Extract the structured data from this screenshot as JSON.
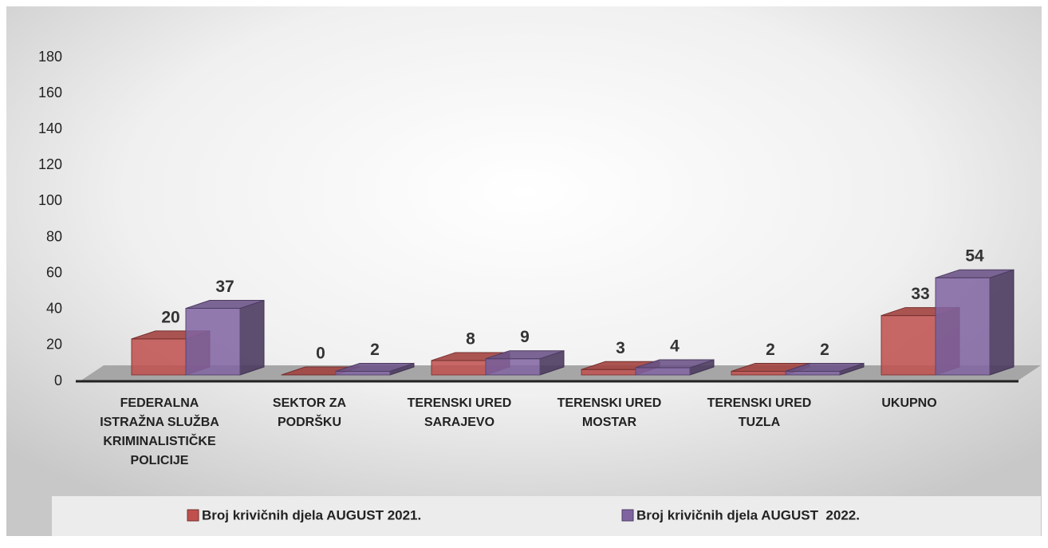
{
  "chart_data": {
    "type": "bar3d",
    "categories": [
      "FEDERALNA ISTRAŽNA SLUŽBA KRIMINALISTIČKE POLICIJE",
      "SEKTOR ZA PODRŠKU",
      "TERENSKI URED SARAJEVO",
      "TERENSKI URED MOSTAR",
      "TERENSKI URED TUZLA",
      "UKUPNO"
    ],
    "series": [
      {
        "name": "Broj krivičnih djela AUGUST 2021.",
        "color": "#c0504d",
        "values": [
          20,
          0,
          8,
          3,
          2,
          33
        ]
      },
      {
        "name": "Broj krivičnih djela AUGUST  2022.",
        "color": "#8064a2",
        "values": [
          37,
          2,
          9,
          4,
          2,
          54
        ]
      }
    ],
    "ylim": [
      0,
      180
    ],
    "yticks": [
      0,
      20,
      40,
      60,
      80,
      100,
      120,
      140,
      160,
      180
    ],
    "legend": "bottom"
  }
}
